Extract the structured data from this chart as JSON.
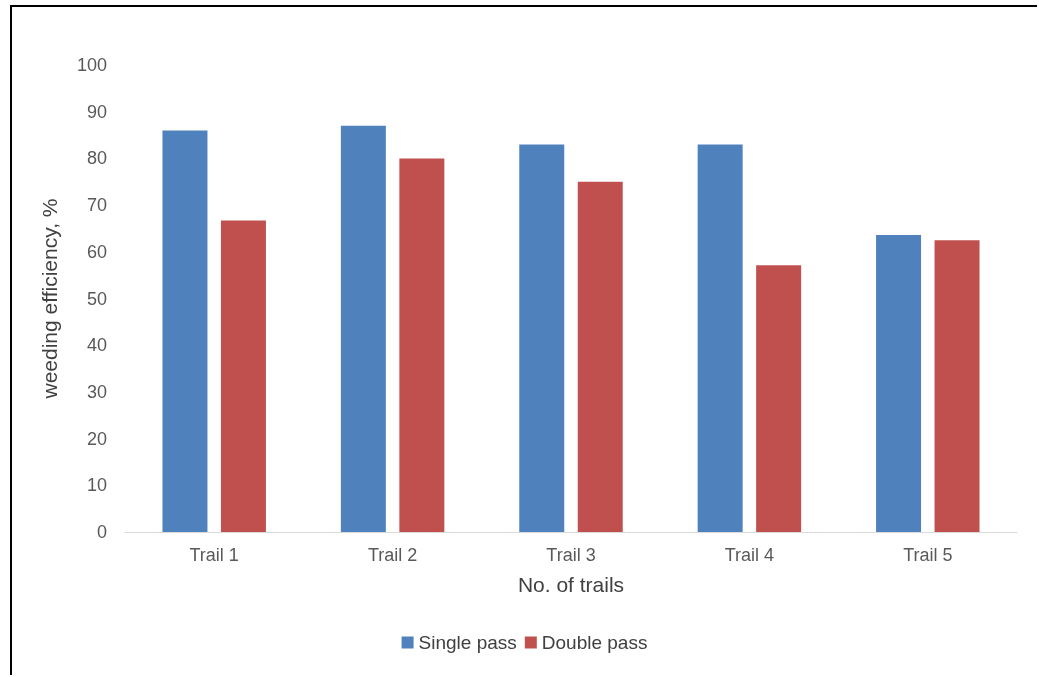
{
  "chart_data": {
    "type": "bar",
    "xlabel": "No. of trails",
    "ylabel": "weeding efficiency, %",
    "categories": [
      "Trail 1",
      "Trail 2",
      "Trail 3",
      "Trail 4",
      "Trail 5"
    ],
    "series": [
      {
        "name": "Single pass",
        "color": "#4f81bd",
        "values": [
          86,
          87,
          83,
          83,
          63.6
        ]
      },
      {
        "name": "Double pass",
        "color": "#c0504d",
        "values": [
          66.7,
          80,
          75,
          57.1,
          62.5
        ]
      }
    ],
    "ylim": [
      0,
      100
    ],
    "yticks": [
      0,
      10,
      20,
      30,
      40,
      50,
      60,
      70,
      80,
      90,
      100
    ],
    "grid": false,
    "legend": "bottom"
  }
}
